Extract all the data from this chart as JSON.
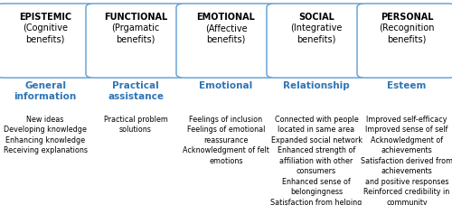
{
  "columns": [
    {
      "header_line1": "EPISTEMIC",
      "header_line2": "(Cognitive\nbenefits)",
      "subheader": "General\ninformation",
      "body": "New ideas\nDeveloping knowledge\nEnhancing knowledge\nReceiving explanations"
    },
    {
      "header_line1": "FUNCTIONAL",
      "header_line2": "(Prgamatic\nbenefits)",
      "subheader": "Practical\nassistance",
      "body": "Practical problem\nsolutions"
    },
    {
      "header_line1": "EMOTIONAL",
      "header_line2": "(Affective\nbenefits)",
      "subheader": "Emotional",
      "body": "Feelings of inclusion\nFeelings of emotional\nreassurance\nAcknowledgment of felt\nemotions"
    },
    {
      "header_line1": "SOCIAL",
      "header_line2": "(Integrative\nbenefits)",
      "subheader": "Relationship",
      "body": "Connected with people\nlocated in same area\nExpanded social network\nEnhanced strength of\naffiliation with other\nconsumers\nEnhanced sense of\nbelongingness\nSatisfaction from helping\nothers"
    },
    {
      "header_line1": "PERSONAL",
      "header_line2": "(Recognition\nbenefits)",
      "subheader": "Esteem",
      "body": "Improved self-efficacy\nImproved sense of self\nAcknowledgment of\nachievements\nSatisfaction derived from\nachievements\nand positive responses\nReinforced credibility in\ncommunity"
    }
  ],
  "box_edge_color": "#5b9bd5",
  "box_face_color": "#ffffff",
  "subheader_color": "#2e75b6",
  "header_text_color": "#000000",
  "body_text_color": "#000000",
  "background_color": "#ffffff",
  "header1_fontsize": 7.0,
  "header2_fontsize": 7.0,
  "subheader_fontsize": 7.5,
  "body_fontsize": 5.8,
  "n_cols": 5,
  "fig_width": 5.0,
  "fig_height": 2.27,
  "fig_dpi": 100
}
